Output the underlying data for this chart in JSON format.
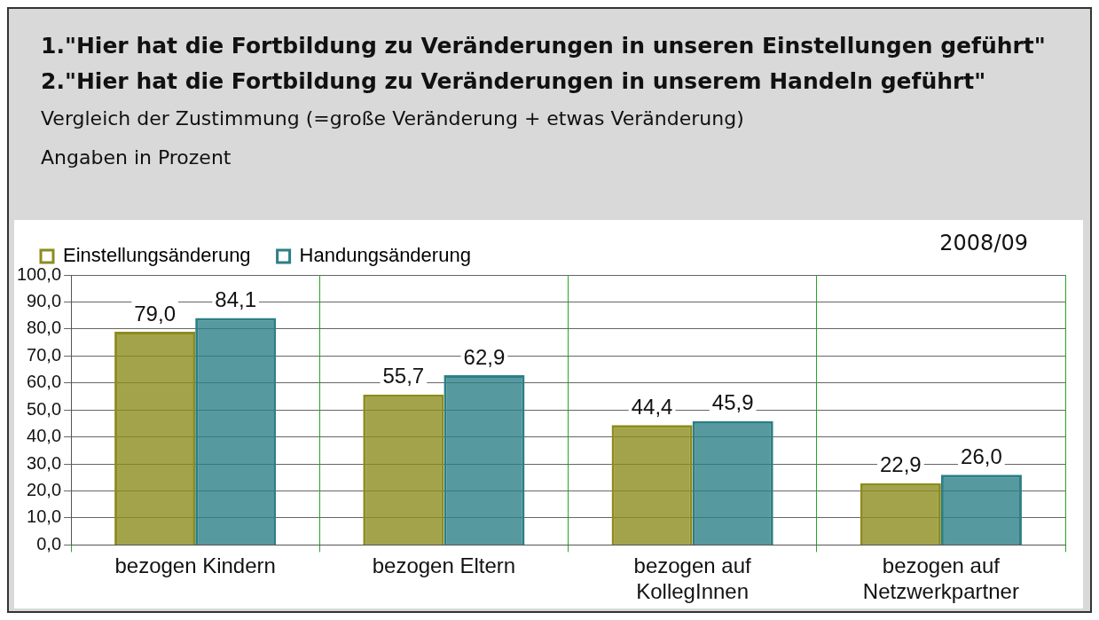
{
  "chart_data": {
    "type": "bar",
    "title": "1.\"Hier hat die Fortbildung zu Veränderungen in unseren Einstellungen geführt\"",
    "subtitle": "2.\"Hier hat die Fortbildung zu Veränderungen in unserem Handeln geführt\"",
    "annotations": [
      "Vergleich der Zustimmung (=große Veränderung + etwas Veränderung)",
      "Angaben in Prozent",
      "2008/09"
    ],
    "categories": [
      "bezogen Kindern",
      "bezogen Eltern",
      "bezogen auf KollegInnen",
      "bezogen auf Netzwerkpartner"
    ],
    "series": [
      {
        "name": "Einstellungsänderung",
        "color": "#8c8c1e",
        "values": [
          79.0,
          55.7,
          44.4,
          22.9
        ],
        "value_labels": [
          "79,0",
          "55,7",
          "44,4",
          "22,9"
        ]
      },
      {
        "name": "Handungsänderung",
        "color": "#2c7f86",
        "values": [
          84.1,
          62.9,
          45.9,
          26.0
        ],
        "value_labels": [
          "84,1",
          "62,9",
          "45,9",
          "26,0"
        ]
      }
    ],
    "ylim": [
      0,
      100
    ],
    "yticks": [
      {
        "value": 0,
        "label": "0,0"
      },
      {
        "value": 10,
        "label": "10,0"
      },
      {
        "value": 20,
        "label": "20,0"
      },
      {
        "value": 30,
        "label": "30,0"
      },
      {
        "value": 40,
        "label": "40,0"
      },
      {
        "value": 50,
        "label": "50,0"
      },
      {
        "value": 60,
        "label": "60,0"
      },
      {
        "value": 70,
        "label": "70,0"
      },
      {
        "value": 80,
        "label": "80,0"
      },
      {
        "value": 90,
        "label": "90,0"
      },
      {
        "value": 100,
        "label": "100,0"
      }
    ],
    "grid": true,
    "legend": "top"
  }
}
